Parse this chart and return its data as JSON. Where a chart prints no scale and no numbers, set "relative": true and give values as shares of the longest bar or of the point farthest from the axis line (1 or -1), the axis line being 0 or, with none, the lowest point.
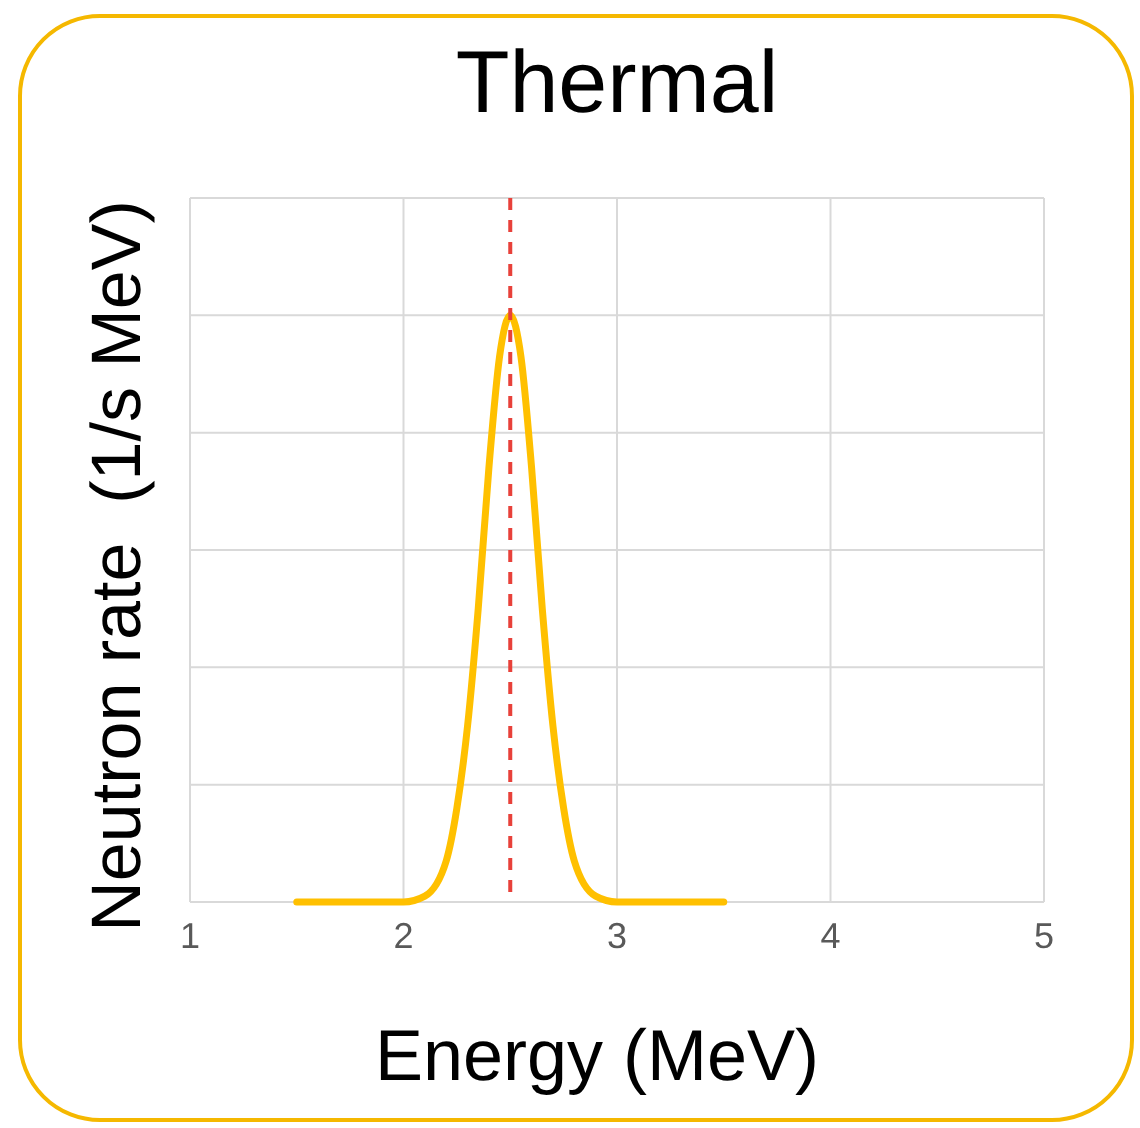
{
  "chart_data": {
    "type": "line",
    "title": "Thermal",
    "xlabel": "Energy (MeV)",
    "ylabel": "Neutron rate  (1/s MeV)",
    "relative": true,
    "x": [
      1.5,
      2.0,
      2.1,
      2.2,
      2.25,
      2.3,
      2.35,
      2.4,
      2.45,
      2.5,
      2.55,
      2.6,
      2.65,
      2.7,
      2.75,
      2.8,
      2.9,
      3.0,
      3.5
    ],
    "series": [
      {
        "color": "#ffc000",
        "values": [
          0,
          0,
          0.01,
          0.07,
          0.16,
          0.3,
          0.5,
          0.74,
          0.93,
          1,
          0.93,
          0.74,
          0.5,
          0.3,
          0.16,
          0.07,
          0.01,
          0,
          0
        ]
      }
    ],
    "xlim": [
      1,
      5
    ],
    "xticks": [
      1,
      2,
      3,
      4,
      5
    ],
    "tick_labels": "x",
    "grid": true,
    "line_style": "solid",
    "marker": "none",
    "ref_lines": [
      {
        "axis": "x",
        "value": 2.5,
        "color": "#e8413a",
        "line_style": "dashed"
      }
    ]
  }
}
